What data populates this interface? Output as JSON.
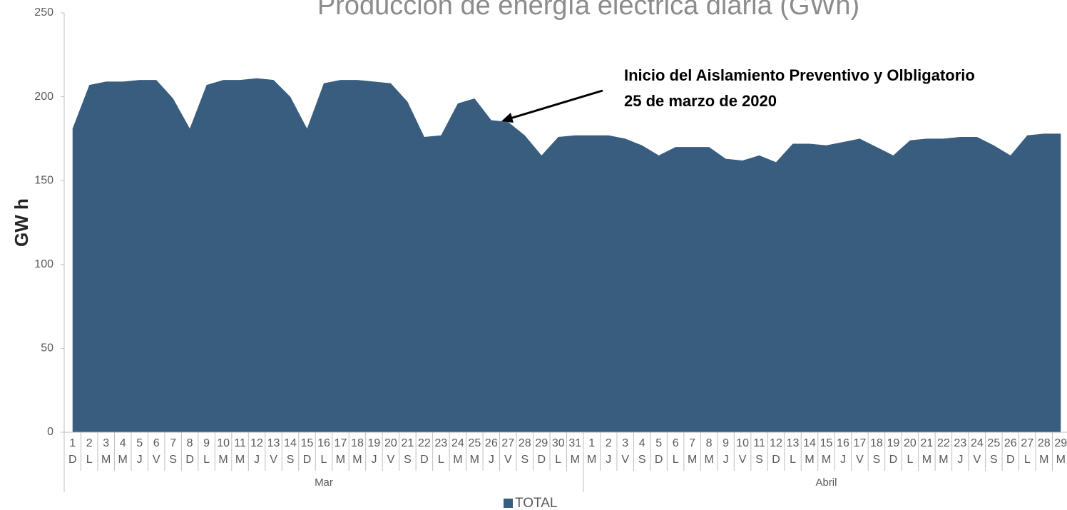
{
  "chart_data": {
    "type": "area",
    "title": "Producción de energía eléctrica diaria (GWh)",
    "y_label": "GW h",
    "annotation": [
      "Inicio del Aislamiento Preventivo y Olbligatorio",
      "25 de marzo de 2020"
    ],
    "categories": [
      "1",
      "2",
      "3",
      "4",
      "5",
      "6",
      "7",
      "8",
      "9",
      "10",
      "11",
      "12",
      "13",
      "14",
      "15",
      "16",
      "17",
      "18",
      "19",
      "20",
      "21",
      "22",
      "23",
      "24",
      "25",
      "26",
      "27",
      "28",
      "29",
      "30",
      "31",
      "1",
      "2",
      "3",
      "4",
      "5",
      "6",
      "7",
      "8",
      "9",
      "10",
      "11",
      "12",
      "13",
      "14",
      "15",
      "16",
      "17",
      "18",
      "19",
      "20",
      "21",
      "22",
      "23",
      "24",
      "25",
      "26",
      "27",
      "28",
      "29"
    ],
    "weekdays": [
      "D",
      "L",
      "M",
      "M",
      "J",
      "V",
      "S",
      "D",
      "L",
      "M",
      "M",
      "J",
      "V",
      "S",
      "D",
      "L",
      "M",
      "M",
      "J",
      "V",
      "S",
      "D",
      "L",
      "M",
      "M",
      "J",
      "V",
      "S",
      "D",
      "L",
      "M",
      "M",
      "J",
      "V",
      "S",
      "D",
      "L",
      "M",
      "M",
      "J",
      "V",
      "S",
      "D",
      "L",
      "M",
      "M",
      "J",
      "V",
      "S",
      "D",
      "L",
      "M",
      "M",
      "J",
      "V",
      "S",
      "D",
      "L",
      "M",
      "M"
    ],
    "months": [
      "Mar",
      "Abril"
    ],
    "series": [
      {
        "name": "TOTAL",
        "color": "#385d7e",
        "values": [
          181,
          207,
          209,
          209,
          210,
          210,
          199,
          181,
          207,
          210,
          210,
          211,
          210,
          200,
          181,
          208,
          210,
          210,
          209,
          208,
          197,
          176,
          177,
          196,
          199,
          186,
          185,
          177,
          165,
          176,
          177,
          177,
          177,
          175,
          171,
          165,
          170,
          170,
          170,
          163,
          162,
          165,
          161,
          172,
          172,
          171,
          173,
          175,
          170,
          165,
          174,
          175,
          175,
          176,
          176,
          171,
          165,
          177,
          178,
          178
        ]
      }
    ],
    "ylim": [
      0,
      250
    ],
    "yticks": [
      0,
      50,
      100,
      150,
      200,
      250
    ]
  }
}
